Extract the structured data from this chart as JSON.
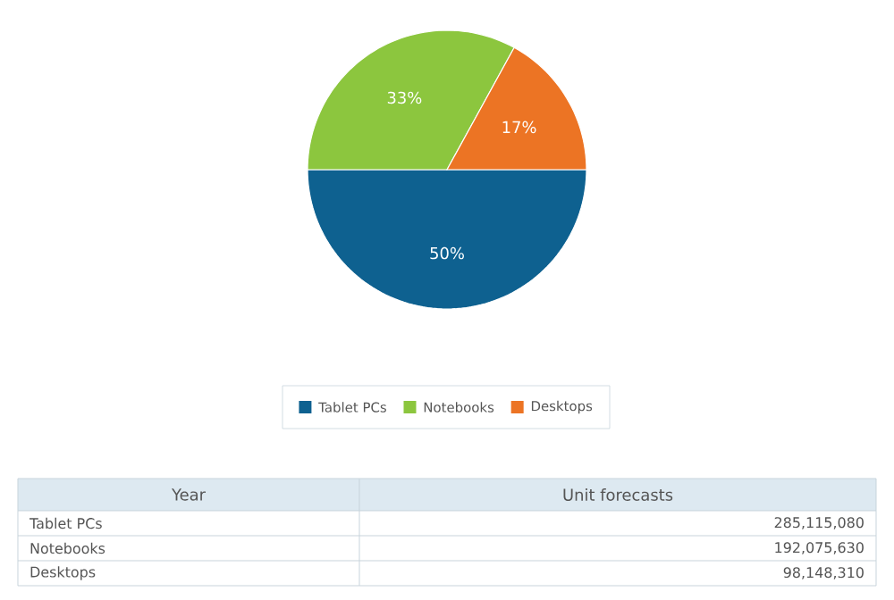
{
  "chart_data": {
    "type": "pie",
    "categories": [
      "Tablet PCs",
      "Notebooks",
      "Desktops"
    ],
    "values": [
      50,
      33,
      17
    ],
    "colors": [
      "#0e6190",
      "#8cc63e",
      "#ec7424"
    ],
    "value_labels": [
      "50%",
      "33%",
      "17%"
    ],
    "legend": "bottom",
    "annotations": [
      "Year",
      "Unit forecasts",
      "285,115,080",
      "192,075,630",
      "98,148,310"
    ]
  }
}
